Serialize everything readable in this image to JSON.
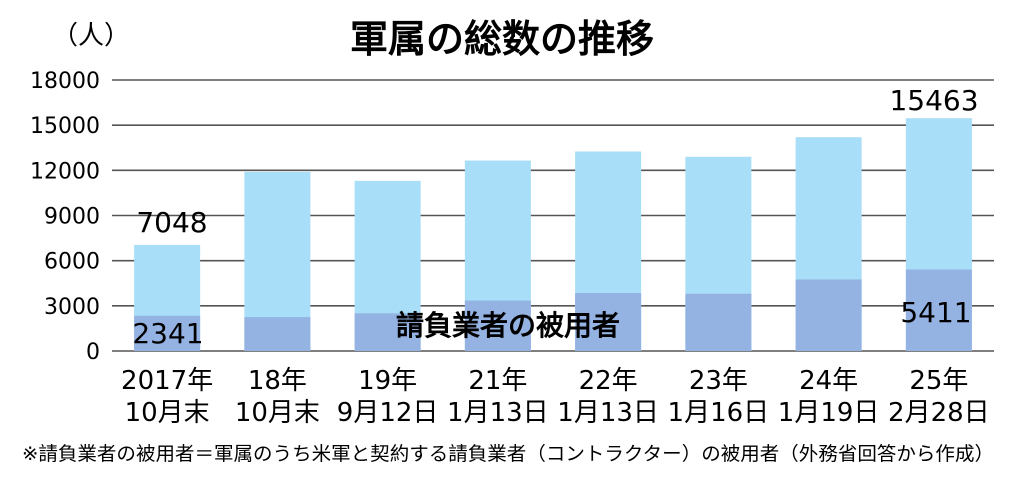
{
  "chart_data": {
    "type": "bar",
    "stacked": true,
    "title": "軍属の総数の推移",
    "ylabel": "（人）",
    "ylim": [
      0,
      18000
    ],
    "yticks": [
      "18000",
      "15000",
      "12000",
      "9000",
      "6000",
      "3000",
      "0"
    ],
    "grid": true,
    "categories": [
      [
        "2017年",
        "10月末"
      ],
      [
        "18年",
        "10月末"
      ],
      [
        "19年",
        "9月12日"
      ],
      [
        "21年",
        "1月13日"
      ],
      [
        "22年",
        "1月13日"
      ],
      [
        "23年",
        "1月16日"
      ],
      [
        "24年",
        "1月19日"
      ],
      [
        "25年",
        "2月28日"
      ]
    ],
    "totals": [
      7048,
      11900,
      11300,
      12650,
      13250,
      12900,
      14200,
      15463
    ],
    "contractor": [
      2341,
      2250,
      2500,
      3350,
      3850,
      3800,
      4750,
      5411
    ],
    "labels": {
      "first_total": "7048",
      "first_contractor": "2341",
      "last_total": "15463",
      "last_contractor": "5411"
    },
    "series_label": "請負業者の被用者",
    "colors": {
      "total": "#a8def7",
      "contractor": "#94b2e2",
      "grid": "#555555"
    },
    "note": "※請負業者の被用者＝軍属のうち米軍と契約する請負業者（コントラクター）の被用者（外務省回答から作成）"
  }
}
